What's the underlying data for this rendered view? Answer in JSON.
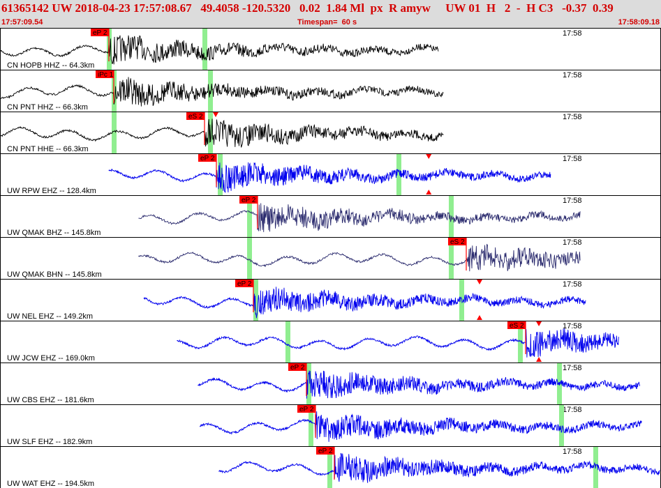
{
  "header": {
    "title": "61365142 UW 2018-04-23 17:57:08.67   49.4058 -120.5320   0.02  1.84 Ml  px  R amyw     UW 01  H   2  -  H C3   -0.37  0.39",
    "start_time": "17:57:09.54",
    "timespan": "Timespan=  60 s",
    "end_time": "17:58:09.18"
  },
  "colors": {
    "pick": "#ff0000",
    "window": "#90ee90",
    "trace_black": "#000000",
    "trace_blue": "#0000ee",
    "trace_navy": "#2b2b6e",
    "header_bg": "#dcdcdc",
    "header_text": "#d40000"
  },
  "panels": [
    {
      "label": "CN HOPB HHZ -- 64.3km",
      "time": "17:58",
      "color": "black",
      "start": 0.0,
      "end": 0.665,
      "p_arrival": 0.165,
      "windows": [
        0.165,
        0.31
      ],
      "picks": [
        {
          "label": "eP 2",
          "pos": 0.165
        }
      ],
      "markers": []
    },
    {
      "label": "CN PNT HHZ -- 66.3km",
      "time": "17:58",
      "color": "black",
      "start": 0.0,
      "end": 0.673,
      "p_arrival": 0.172,
      "windows": [
        0.172,
        0.318
      ],
      "picks": [
        {
          "label": "iPc 1",
          "pos": 0.172
        }
      ],
      "markers": []
    },
    {
      "label": "CN PNT HHE -- 66.3km",
      "time": "17:58",
      "color": "black",
      "start": 0.0,
      "end": 0.673,
      "p_arrival": 0.31,
      "windows": [
        0.172,
        0.318
      ],
      "picks": [
        {
          "label": "eS 2",
          "pos": 0.31
        }
      ],
      "markers": [
        {
          "pos": 0.327,
          "dir": "down"
        }
      ]
    },
    {
      "label": "UW RPW EHZ -- 128.4km",
      "time": "17:58",
      "color": "blue",
      "start": 0.165,
      "end": 0.835,
      "p_arrival": 0.328,
      "windows": [
        0.333,
        0.604
      ],
      "picks": [
        {
          "label": "eP 2",
          "pos": 0.328
        }
      ],
      "markers": [
        {
          "pos": 0.65,
          "dir": "down"
        },
        {
          "pos": 0.65,
          "dir": "up"
        }
      ]
    },
    {
      "label": "UW QMAK BHZ -- 145.8km",
      "time": "17:58",
      "color": "navy",
      "start": 0.21,
      "end": 0.88,
      "p_arrival": 0.39,
      "windows": [
        0.378,
        0.684
      ],
      "picks": [
        {
          "label": "eP 2",
          "pos": 0.39
        }
      ],
      "markers": []
    },
    {
      "label": "UW QMAK BHN -- 145.8km",
      "time": "17:58",
      "color": "navy",
      "start": 0.21,
      "end": 0.88,
      "p_arrival": 0.707,
      "windows": [
        0.378,
        0.684
      ],
      "picks": [
        {
          "label": "eS 2",
          "pos": 0.707
        }
      ],
      "markers": []
    },
    {
      "label": "UW NEL EHZ -- 149.2km",
      "time": "17:58",
      "color": "blue",
      "start": 0.218,
      "end": 0.888,
      "p_arrival": 0.384,
      "windows": [
        0.387,
        0.699
      ],
      "picks": [
        {
          "label": "eP 2",
          "pos": 0.384
        }
      ],
      "markers": [
        {
          "pos": 0.727,
          "dir": "down"
        },
        {
          "pos": 0.727,
          "dir": "up"
        }
      ]
    },
    {
      "label": "UW JCW EHZ -- 169.0km",
      "time": "17:58",
      "color": "blue",
      "start": 0.268,
      "end": 0.938,
      "p_arrival": 0.797,
      "windows": [
        0.436,
        0.788
      ],
      "picks": [
        {
          "label": "eS 2",
          "pos": 0.797
        }
      ],
      "markers": [
        {
          "pos": 0.817,
          "dir": "down"
        },
        {
          "pos": 0.817,
          "dir": "up"
        }
      ]
    },
    {
      "label": "UW CBS EHZ -- 181.6km",
      "time": "17:58",
      "color": "blue",
      "start": 0.3,
      "end": 0.97,
      "p_arrival": 0.465,
      "windows": [
        0.468,
        0.848
      ],
      "picks": [
        {
          "label": "eP 2",
          "pos": 0.465
        }
      ],
      "markers": []
    },
    {
      "label": "UW SLF EHZ -- 182.9km",
      "time": "17:58",
      "color": "blue",
      "start": 0.303,
      "end": 0.973,
      "p_arrival": 0.478,
      "windows": [
        0.471,
        0.851
      ],
      "picks": [
        {
          "label": "eP 2",
          "pos": 0.478
        }
      ],
      "markers": []
    },
    {
      "label": "UW WAT EHZ -- 194.5km",
      "time": "17:58",
      "color": "blue",
      "start": 0.332,
      "end": 1.0,
      "p_arrival": 0.507,
      "windows": [
        0.499,
        0.903
      ],
      "picks": [
        {
          "label": "eP 2",
          "pos": 0.507
        }
      ],
      "markers": []
    }
  ]
}
